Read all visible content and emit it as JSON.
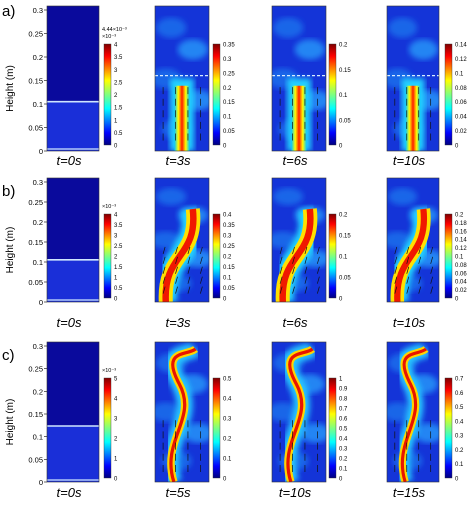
{
  "figure": {
    "rows": [
      {
        "label": "a)",
        "ylabel": "Height (m)",
        "yticks": [
          "0.3",
          "0.25",
          "0.2",
          "0.15",
          "0.1",
          "0.05",
          "0"
        ],
        "panels": [
          {
            "time": "t=0s",
            "cb_multiplier": "4.44×10⁻³\n×10⁻³",
            "cb_ticks": [
              "4",
              "3.5",
              "3",
              "2.5",
              "2",
              "1.5",
              "1",
              "0.5",
              "0"
            ]
          },
          {
            "time": "t=3s",
            "cb_ticks": [
              "0.35",
              "0.3",
              "0.25",
              "0.2",
              "0.15",
              "0.1",
              "0.05",
              "0"
            ]
          },
          {
            "time": "t=6s",
            "cb_ticks": [
              "0.2",
              "0.15",
              "0.1",
              "0.05",
              "0"
            ]
          },
          {
            "time": "t=10s",
            "cb_ticks": [
              "0.14",
              "0.12",
              "0.1",
              "0.08",
              "0.06",
              "0.04",
              "0.02",
              "0"
            ]
          }
        ]
      },
      {
        "label": "b)",
        "ylabel": "Height (m)",
        "yticks": [
          "0.3",
          "0.25",
          "0.2",
          "0.15",
          "0.1",
          "0.05",
          "0"
        ],
        "panels": [
          {
            "time": "t=0s",
            "cb_multiplier": "×10⁻³",
            "cb_ticks": [
              "4",
              "3.5",
              "3",
              "2.5",
              "2",
              "1.5",
              "1",
              "0.5",
              "0"
            ]
          },
          {
            "time": "t=3s",
            "cb_ticks": [
              "0.4",
              "0.35",
              "0.3",
              "0.25",
              "0.2",
              "0.15",
              "0.1",
              "0.05",
              "0"
            ]
          },
          {
            "time": "t=6s",
            "cb_ticks": [
              "0.2",
              "0.15",
              "0.1",
              "0.05",
              "0"
            ]
          },
          {
            "time": "t=10s",
            "cb_ticks": [
              "0.2",
              "0.18",
              "0.16",
              "0.14",
              "0.12",
              "0.1",
              "0.08",
              "0.06",
              "0.04",
              "0.02",
              "0"
            ]
          }
        ]
      },
      {
        "label": "c)",
        "ylabel": "Height (m)",
        "yticks": [
          "0.3",
          "0.25",
          "0.2",
          "0.15",
          "0.1",
          "0.05",
          "0"
        ],
        "panels": [
          {
            "time": "t=0s",
            "cb_multiplier": "×10⁻³",
            "cb_ticks": [
              "5",
              "4",
              "3",
              "2",
              "1",
              "0"
            ]
          },
          {
            "time": "t=5s",
            "cb_ticks": [
              "0.5",
              "0.4",
              "0.3",
              "0.2",
              "0.1",
              "0"
            ]
          },
          {
            "time": "t=10s",
            "cb_ticks": [
              "1",
              "0.9",
              "0.8",
              "0.7",
              "0.6",
              "0.5",
              "0.4",
              "0.3",
              "0.2",
              "0.1",
              "0"
            ]
          },
          {
            "time": "t=15s",
            "cb_ticks": [
              "0.7",
              "0.6",
              "0.5",
              "0.4",
              "0.3",
              "0.2",
              "0.1",
              "0"
            ]
          }
        ]
      }
    ]
  }
}
